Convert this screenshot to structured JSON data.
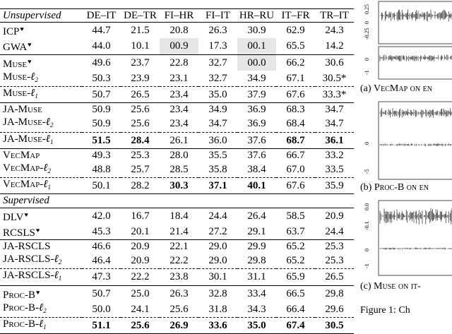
{
  "table": {
    "columns": [
      "DE–IT",
      "DE–TR",
      "FI–HR",
      "FI–IT",
      "HR–RU",
      "IT–FR",
      "TR–IT"
    ],
    "sections": [
      {
        "label": "Unsupervised",
        "groups": [
          [
            {
              "name": "ICP",
              "suffix": "",
              "sup": "♥",
              "values": [
                "44.7",
                "21.5",
                "20.8",
                "26.3",
                "30.9",
                "62.9",
                "24.3"
              ],
              "bold": [],
              "shade": [],
              "note": ""
            },
            {
              "name": "GWA",
              "suffix": "",
              "sup": "♥",
              "values": [
                "44.0",
                "10.1",
                "00.9",
                "17.3",
                "00.1",
                "65.5",
                "14.2"
              ],
              "bold": [],
              "shade": [
                2,
                4
              ],
              "note": ""
            }
          ],
          [
            {
              "name": "Muse",
              "suffix": "",
              "sup": "♥",
              "values": [
                "49.6",
                "23.7",
                "22.8",
                "32.7",
                "00.0",
                "66.2",
                "30.6"
              ],
              "bold": [],
              "shade": [
                4
              ],
              "note": ""
            },
            {
              "name": "Muse-",
              "suffix": "2",
              "sup": "",
              "values": [
                "50.3",
                "23.9",
                "23.1",
                "32.7",
                "34.9",
                "67.1",
                "30.5"
              ],
              "bold": [],
              "shade": [],
              "note": "*"
            },
            {
              "name": "Muse-",
              "suffix": "1",
              "sup": "",
              "values": [
                "50.7",
                "26.5",
                "23.4",
                "35.0",
                "37.9",
                "67.6",
                "33.3"
              ],
              "bold": [],
              "shade": [],
              "note": "*"
            }
          ],
          [
            {
              "name": "JA-Muse",
              "suffix": "",
              "sup": "",
              "values": [
                "50.9",
                "25.6",
                "23.4",
                "34.9",
                "36.9",
                "68.3",
                "34.7"
              ],
              "bold": [],
              "shade": [],
              "note": ""
            },
            {
              "name": "JA-Muse-",
              "suffix": "2",
              "sup": "",
              "values": [
                "50.9",
                "25.6",
                "23.4",
                "34.7",
                "36.9",
                "68.4",
                "34.7"
              ],
              "bold": [],
              "shade": [],
              "note": ""
            },
            {
              "name": "JA-Muse-",
              "suffix": "1",
              "sup": "",
              "values": [
                "51.5",
                "28.4",
                "26.1",
                "36.0",
                "37.6",
                "68.7",
                "36.1"
              ],
              "bold": [
                0,
                1,
                5,
                6
              ],
              "shade": [],
              "note": ""
            }
          ],
          [
            {
              "name": "VecMap",
              "suffix": "",
              "sup": "",
              "values": [
                "49.3",
                "25.3",
                "28.0",
                "35.5",
                "37.6",
                "66.7",
                "33.2"
              ],
              "bold": [],
              "shade": [],
              "note": ""
            },
            {
              "name": "VecMap-",
              "suffix": "2",
              "sup": "",
              "values": [
                "48.8",
                "25.7",
                "28.5",
                "35.8",
                "38.4",
                "67.0",
                "33.5"
              ],
              "bold": [],
              "shade": [],
              "note": ""
            },
            {
              "name": "VecMap-",
              "suffix": "1",
              "sup": "",
              "values": [
                "50.1",
                "28.2",
                "30.3",
                "37.1",
                "40.1",
                "67.6",
                "35.9"
              ],
              "bold": [
                2,
                3,
                4
              ],
              "shade": [],
              "note": ""
            }
          ]
        ]
      },
      {
        "label": "Supervised",
        "groups": [
          [
            {
              "name": "DLV",
              "suffix": "",
              "sup": "♥",
              "values": [
                "42.0",
                "16.7",
                "18.4",
                "24.4",
                "26.4",
                "58.5",
                "20.9"
              ],
              "bold": [],
              "shade": [],
              "note": ""
            },
            {
              "name": "RCSLS",
              "suffix": "",
              "sup": "♥",
              "values": [
                "45.3",
                "20.1",
                "21.4",
                "27.2",
                "29.1",
                "63.7",
                "24.4"
              ],
              "bold": [],
              "shade": [],
              "note": ""
            }
          ],
          [
            {
              "name": "JA-RSCLS",
              "suffix": "",
              "sup": "",
              "values": [
                "46.6",
                "20.9",
                "22.1",
                "29.0",
                "29.9",
                "65.2",
                "25.3"
              ],
              "bold": [],
              "shade": [],
              "note": ""
            },
            {
              "name": "JA-RSCLS-",
              "suffix": "2",
              "sup": "",
              "values": [
                "46.4",
                "20.9",
                "22.2",
                "29.0",
                "29.8",
                "65.2",
                "25.3"
              ],
              "bold": [],
              "shade": [],
              "note": ""
            },
            {
              "name": "JA-RSCLS-",
              "suffix": "1",
              "sup": "",
              "values": [
                "47.3",
                "22.2",
                "23.8",
                "30.1",
                "31.1",
                "65.9",
                "26.5"
              ],
              "bold": [],
              "shade": [],
              "note": ""
            }
          ],
          [
            {
              "name": "Proc-B",
              "suffix": "",
              "sup": "♥",
              "values": [
                "50.7",
                "25.0",
                "26.3",
                "32.8",
                "33.4",
                "66.5",
                "29.8"
              ],
              "bold": [],
              "shade": [],
              "note": ""
            },
            {
              "name": "Proc-B-",
              "suffix": "2",
              "sup": "",
              "values": [
                "50.0",
                "24.1",
                "25.6",
                "31.8",
                "34.3",
                "66.4",
                "29.6"
              ],
              "bold": [],
              "shade": [],
              "note": ""
            },
            {
              "name": "Proc-B-",
              "suffix": "1",
              "sup": "",
              "values": [
                "51.1",
                "25.6",
                "26.9",
                "33.6",
                "35.0",
                "67.4",
                "30.5"
              ],
              "bold": [
                0,
                1,
                2,
                3,
                4,
                5,
                6
              ],
              "shade": [],
              "note": ""
            }
          ]
        ]
      }
    ]
  },
  "figure": {
    "panels": [
      {
        "caption_label": "(a)",
        "caption_name": "VecMap",
        "caption_rest": " on en",
        "ticks": [
          "0.25",
          "0",
          "-0.25",
          "0",
          "-1"
        ]
      },
      {
        "caption_label": "(b)",
        "caption_name": "Proc-B",
        "caption_rest": " on en",
        "ticks": [
          "0",
          "-5"
        ]
      },
      {
        "caption_label": "(c)",
        "caption_name": "Muse",
        "caption_rest": " on it-",
        "ticks": [
          "0.0",
          "-0.1",
          "0",
          "-1"
        ]
      }
    ],
    "footer_text": "Figure 1: Ch"
  }
}
